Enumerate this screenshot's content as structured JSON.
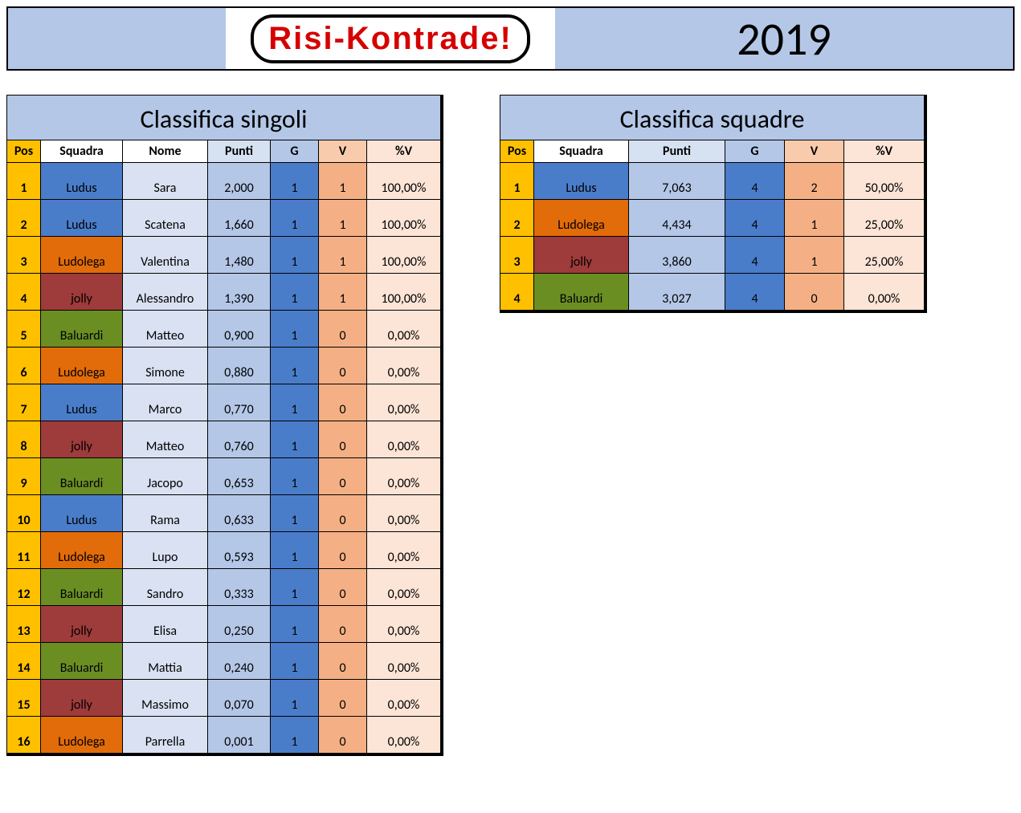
{
  "header": {
    "logo_text": "Risi-Kontrade!",
    "year": "2019"
  },
  "colors": {
    "header_bg": "#b4c7e7",
    "pos_bg": "#ffc000",
    "nome_bg": "#d9e1f2",
    "punti_bg": "#b4c7e7",
    "g_bg": "#4a7dc9",
    "v_bg": "#f4b084",
    "pct_bg": "#fce4d6",
    "logo_text_color": "#d60000"
  },
  "team_colors": {
    "Ludus": "#4a7dc9",
    "Ludolega": "#e26b0a",
    "jolly": "#9e3b3b",
    "Baluardi": "#6b8e23"
  },
  "singoli": {
    "title": "Classifica singoli",
    "columns": [
      "Pos",
      "Squadra",
      "Nome",
      "Punti",
      "G",
      "V",
      "%V"
    ],
    "rows": [
      {
        "pos": "1",
        "squadra": "Ludus",
        "nome": "Sara",
        "punti": "2,000",
        "g": "1",
        "v": "1",
        "pct": "100,00%"
      },
      {
        "pos": "2",
        "squadra": "Ludus",
        "nome": "Scatena",
        "punti": "1,660",
        "g": "1",
        "v": "1",
        "pct": "100,00%"
      },
      {
        "pos": "3",
        "squadra": "Ludolega",
        "nome": "Valentina",
        "punti": "1,480",
        "g": "1",
        "v": "1",
        "pct": "100,00%"
      },
      {
        "pos": "4",
        "squadra": "jolly",
        "nome": "Alessandro",
        "punti": "1,390",
        "g": "1",
        "v": "1",
        "pct": "100,00%"
      },
      {
        "pos": "5",
        "squadra": "Baluardi",
        "nome": "Matteo",
        "punti": "0,900",
        "g": "1",
        "v": "0",
        "pct": "0,00%"
      },
      {
        "pos": "6",
        "squadra": "Ludolega",
        "nome": "Simone",
        "punti": "0,880",
        "g": "1",
        "v": "0",
        "pct": "0,00%"
      },
      {
        "pos": "7",
        "squadra": "Ludus",
        "nome": "Marco",
        "punti": "0,770",
        "g": "1",
        "v": "0",
        "pct": "0,00%"
      },
      {
        "pos": "8",
        "squadra": "jolly",
        "nome": "Matteo",
        "punti": "0,760",
        "g": "1",
        "v": "0",
        "pct": "0,00%"
      },
      {
        "pos": "9",
        "squadra": "Baluardi",
        "nome": "Jacopo",
        "punti": "0,653",
        "g": "1",
        "v": "0",
        "pct": "0,00%"
      },
      {
        "pos": "10",
        "squadra": "Ludus",
        "nome": "Rama",
        "punti": "0,633",
        "g": "1",
        "v": "0",
        "pct": "0,00%"
      },
      {
        "pos": "11",
        "squadra": "Ludolega",
        "nome": "Lupo",
        "punti": "0,593",
        "g": "1",
        "v": "0",
        "pct": "0,00%"
      },
      {
        "pos": "12",
        "squadra": "Baluardi",
        "nome": "Sandro",
        "punti": "0,333",
        "g": "1",
        "v": "0",
        "pct": "0,00%"
      },
      {
        "pos": "13",
        "squadra": "jolly",
        "nome": "Elisa",
        "punti": "0,250",
        "g": "1",
        "v": "0",
        "pct": "0,00%"
      },
      {
        "pos": "14",
        "squadra": "Baluardi",
        "nome": "Mattia",
        "punti": "0,240",
        "g": "1",
        "v": "0",
        "pct": "0,00%"
      },
      {
        "pos": "15",
        "squadra": "jolly",
        "nome": "Massimo",
        "punti": "0,070",
        "g": "1",
        "v": "0",
        "pct": "0,00%"
      },
      {
        "pos": "16",
        "squadra": "Ludolega",
        "nome": "Parrella",
        "punti": "0,001",
        "g": "1",
        "v": "0",
        "pct": "0,00%"
      }
    ]
  },
  "squadre": {
    "title": "Classifica squadre",
    "columns": [
      "Pos",
      "Squadra",
      "Punti",
      "G",
      "V",
      "%V"
    ],
    "rows": [
      {
        "pos": "1",
        "squadra": "Ludus",
        "punti": "7,063",
        "g": "4",
        "v": "2",
        "pct": "50,00%"
      },
      {
        "pos": "2",
        "squadra": "Ludolega",
        "punti": "4,434",
        "g": "4",
        "v": "1",
        "pct": "25,00%"
      },
      {
        "pos": "3",
        "squadra": "jolly",
        "punti": "3,860",
        "g": "4",
        "v": "1",
        "pct": "25,00%"
      },
      {
        "pos": "4",
        "squadra": "Baluardi",
        "punti": "3,027",
        "g": "4",
        "v": "0",
        "pct": "0,00%"
      }
    ]
  }
}
